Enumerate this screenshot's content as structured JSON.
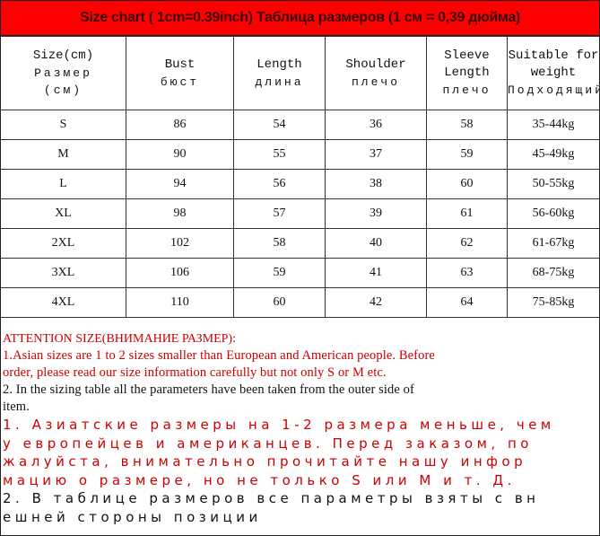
{
  "title": "Size chart ( 1cm=0.39inch) Таблица размеров (1 см = 0,39 дюйма)",
  "headers": [
    {
      "en": "Size(cm)",
      "ru": "Размер",
      "ru2": "(см)"
    },
    {
      "en": "Bust",
      "ru": "бюст"
    },
    {
      "en": "Length",
      "ru": "длина"
    },
    {
      "en": "Shoulder",
      "ru": "плечо"
    },
    {
      "en": "Sleeve Length",
      "ru": "плечо"
    },
    {
      "en": "Suitable for weight",
      "ru": "Подходящий"
    }
  ],
  "rows": [
    [
      "S",
      "86",
      "54",
      "36",
      "58",
      "35-44kg"
    ],
    [
      "M",
      "90",
      "55",
      "37",
      "59",
      "45-49kg"
    ],
    [
      "L",
      "94",
      "56",
      "38",
      "60",
      "50-55kg"
    ],
    [
      "XL",
      "98",
      "57",
      "39",
      "61",
      "56-60kg"
    ],
    [
      "2XL",
      "102",
      "58",
      "40",
      "62",
      "61-67kg"
    ],
    [
      "3XL",
      "106",
      "59",
      "41",
      "63",
      "68-75kg"
    ],
    [
      "4XL",
      "110",
      "60",
      "42",
      "64",
      "75-85kg"
    ]
  ],
  "notes": {
    "attention": "ATTENTION SIZE(ВНИМАНИЕ РАЗМЕР):",
    "en1a": "1.Asian sizes are 1 to 2 sizes smaller than European and American people. Before",
    "en1b": "order, please read our size information carefully but not only S or M etc.",
    "en2a": "2. In the sizing table all the parameters have been taken from the outer side of",
    "en2b": "item.",
    "ru1a": "1. Азиатские размеры на 1-2 размера меньше, чем",
    "ru1b": "у европейцев и американцев. Перед заказом, по",
    "ru1c": "жалуйста, внимательно прочитайте нашу инфор",
    "ru1d": "мацию о размере, но не только S или M и т. Д.",
    "ru2a": "2. В таблице размеров все параметры взяты с вн",
    "ru2b": "ешней стороны позиции"
  },
  "colors": {
    "title_bg": "#ff0000",
    "note_red": "#cc0000"
  }
}
